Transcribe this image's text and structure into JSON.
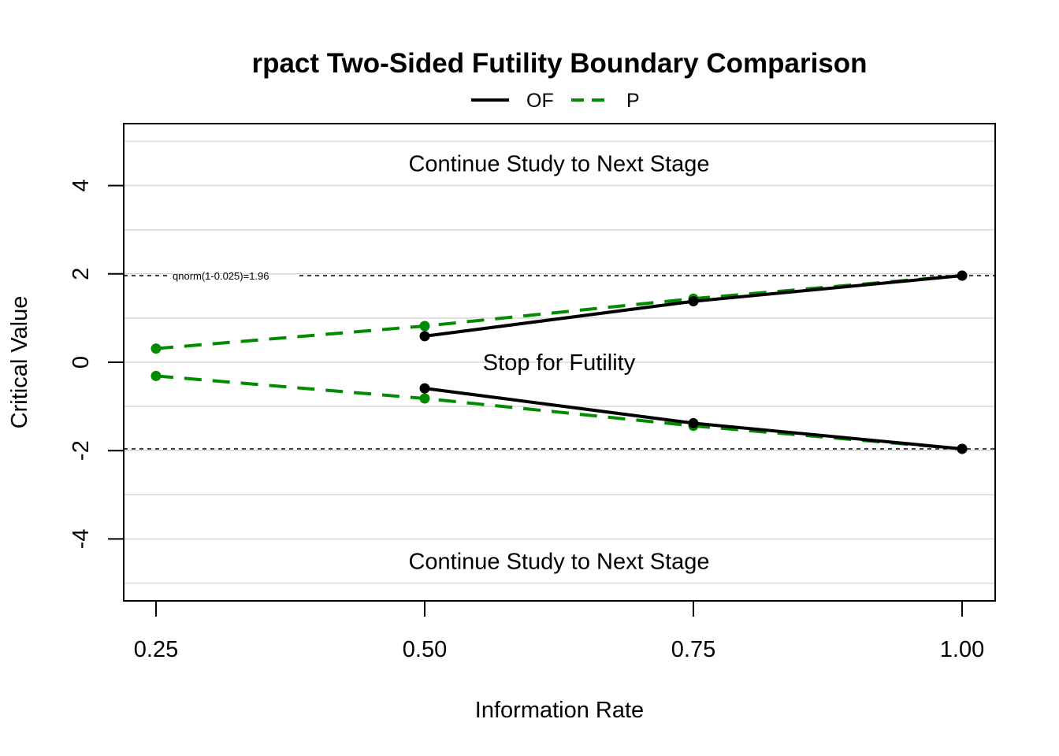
{
  "chart_data": {
    "type": "line",
    "title": "rpact Two-Sided Futility Boundary Comparison",
    "xlabel": "Information Rate",
    "ylabel": "Critical Value",
    "xlim": [
      0.22,
      1.03
    ],
    "ylim": [
      -5.4,
      5.4
    ],
    "x_ticks": [
      0.25,
      0.5,
      0.75,
      1.0
    ],
    "x_tick_labels": [
      "0.25",
      "0.50",
      "0.75",
      "1.00"
    ],
    "y_ticks": [
      -4,
      -2,
      0,
      2,
      4
    ],
    "y_tick_labels": [
      "-4",
      "-2",
      "0",
      "2",
      "4"
    ],
    "grid_y": [
      -5,
      -4,
      -3,
      -2,
      -1,
      0,
      1,
      2,
      3,
      4,
      5
    ],
    "legend_position": "top-center",
    "series": [
      {
        "name": "OF",
        "color": "#000000",
        "dash": "solid",
        "upper": {
          "x": [
            0.5,
            0.75,
            1.0
          ],
          "y": [
            0.59,
            1.38,
            1.96
          ]
        },
        "lower": {
          "x": [
            0.5,
            0.75,
            1.0
          ],
          "y": [
            -0.59,
            -1.38,
            -1.96
          ]
        }
      },
      {
        "name": "P",
        "color": "#008B00",
        "dash": "dashed",
        "upper": {
          "x": [
            0.25,
            0.5,
            0.75,
            1.0
          ],
          "y": [
            0.31,
            0.82,
            1.44,
            1.96
          ]
        },
        "lower": {
          "x": [
            0.25,
            0.5,
            0.75,
            1.0
          ],
          "y": [
            -0.31,
            -0.82,
            -1.44,
            -1.96
          ]
        }
      }
    ],
    "reference_lines": [
      {
        "y": 1.96,
        "label": "qnorm(1-0.025)=1.96"
      },
      {
        "y": -1.96,
        "label": ""
      }
    ],
    "annotations": [
      {
        "text": "Continue Study to Next Stage",
        "x": 0.625,
        "y": 4.5
      },
      {
        "text": "Stop for Futility",
        "x": 0.625,
        "y": 0.0
      },
      {
        "text": "Continue Study to Next Stage",
        "x": 0.625,
        "y": -4.5
      }
    ]
  }
}
